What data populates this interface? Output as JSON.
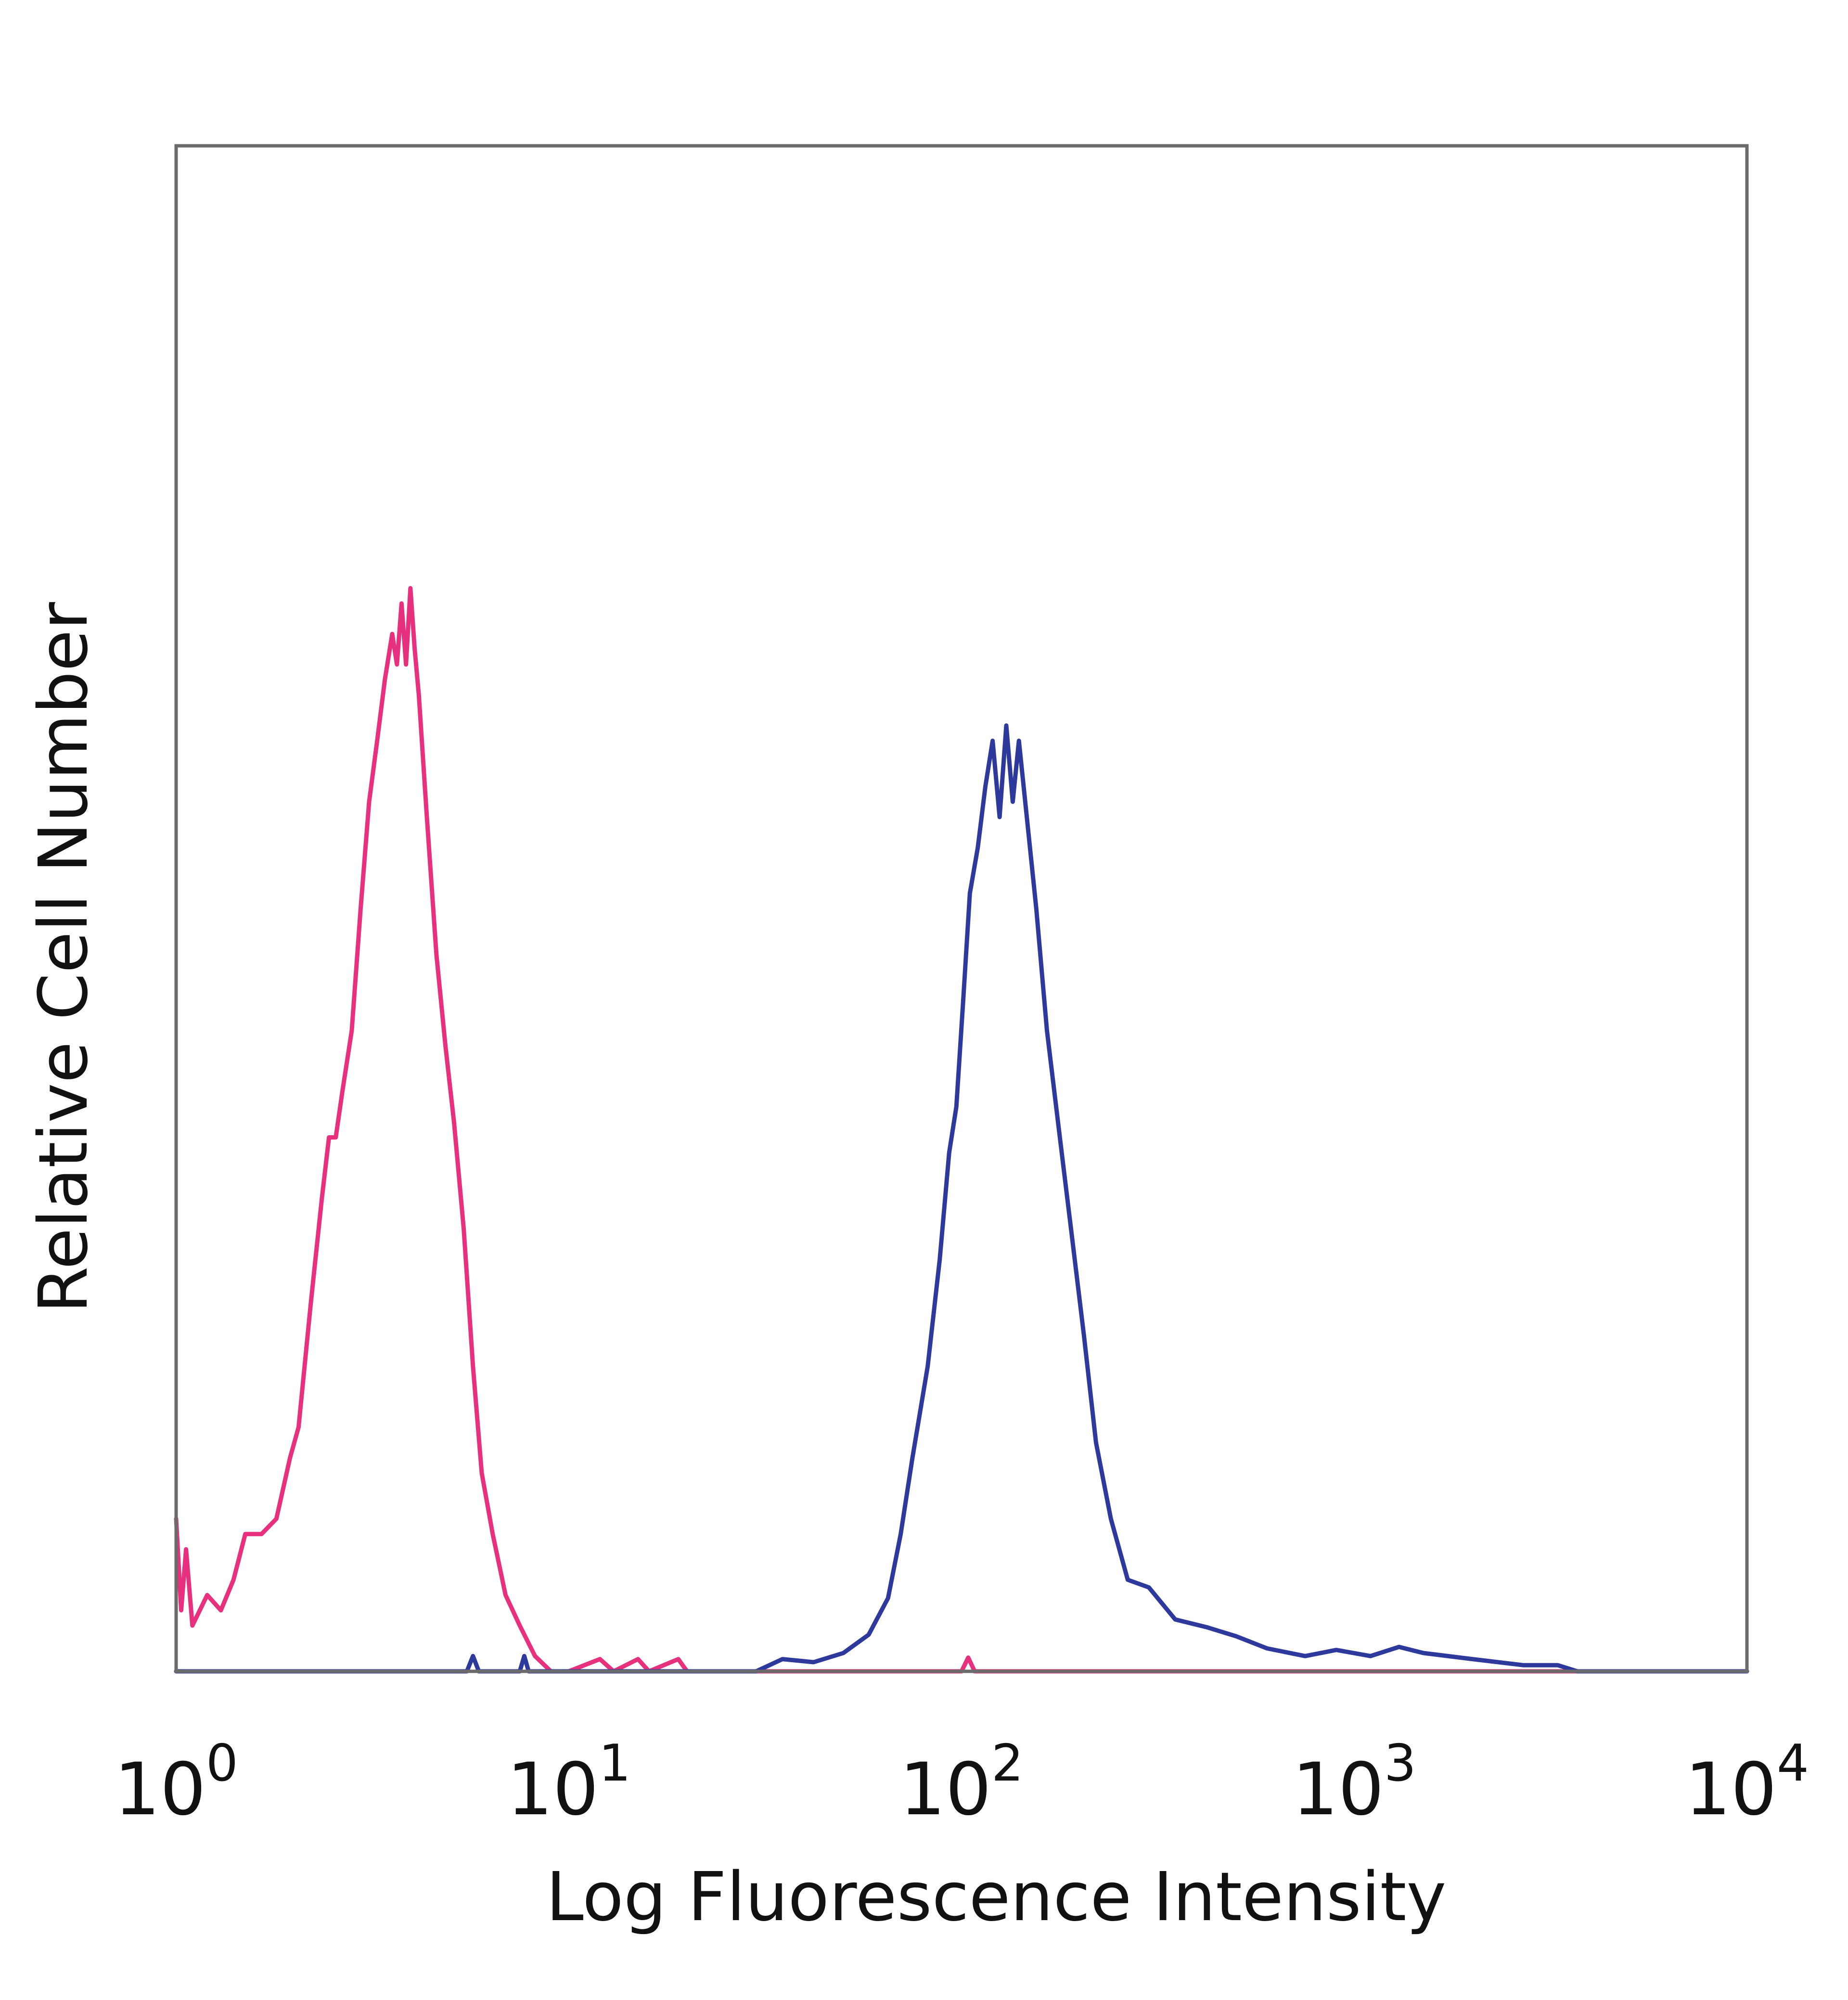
{
  "chart_data": {
    "type": "line",
    "title": "",
    "xlabel": "Log Fluorescence Intensity",
    "ylabel": "Relative Cell Number",
    "x_scale": "log",
    "xlim": [
      1,
      10000
    ],
    "ylim": [
      0,
      100
    ],
    "grid": false,
    "x_ticks": [
      {
        "base": "10",
        "exp": "0",
        "value": 1
      },
      {
        "base": "10",
        "exp": "1",
        "value": 10
      },
      {
        "base": "10",
        "exp": "2",
        "value": 100
      },
      {
        "base": "10",
        "exp": "3",
        "value": 1000
      },
      {
        "base": "10",
        "exp": "4",
        "value": 10000
      }
    ],
    "series": [
      {
        "color": "#e8317e",
        "points": [
          [
            1.0,
            10
          ],
          [
            1.03,
            4
          ],
          [
            1.06,
            8
          ],
          [
            1.1,
            3
          ],
          [
            1.2,
            5
          ],
          [
            1.3,
            4
          ],
          [
            1.4,
            6
          ],
          [
            1.5,
            9
          ],
          [
            1.65,
            9
          ],
          [
            1.8,
            10
          ],
          [
            1.95,
            14
          ],
          [
            2.05,
            16
          ],
          [
            2.2,
            24
          ],
          [
            2.35,
            31
          ],
          [
            2.45,
            35
          ],
          [
            2.55,
            35
          ],
          [
            2.65,
            38
          ],
          [
            2.8,
            42
          ],
          [
            2.95,
            50
          ],
          [
            3.1,
            57
          ],
          [
            3.25,
            61
          ],
          [
            3.4,
            65
          ],
          [
            3.55,
            68
          ],
          [
            3.65,
            66
          ],
          [
            3.75,
            70
          ],
          [
            3.85,
            66
          ],
          [
            3.95,
            71
          ],
          [
            4.05,
            67
          ],
          [
            4.15,
            64
          ],
          [
            4.35,
            56
          ],
          [
            4.6,
            47
          ],
          [
            4.85,
            41
          ],
          [
            5.1,
            36
          ],
          [
            5.4,
            29
          ],
          [
            5.7,
            20
          ],
          [
            6.0,
            13
          ],
          [
            6.4,
            9
          ],
          [
            6.9,
            5
          ],
          [
            7.5,
            3
          ],
          [
            8.2,
            1
          ],
          [
            9.0,
            0
          ],
          [
            10,
            0
          ],
          [
            12,
            0.8
          ],
          [
            13,
            0
          ],
          [
            15,
            0.8
          ],
          [
            16,
            0
          ],
          [
            19,
            0.8
          ],
          [
            20,
            0
          ],
          [
            100,
            0
          ],
          [
            104,
            0.9
          ],
          [
            108,
            0
          ],
          [
            10000,
            0
          ]
        ]
      },
      {
        "color": "#2d3a9c",
        "points": [
          [
            1.0,
            0
          ],
          [
            5.5,
            0
          ],
          [
            5.7,
            1
          ],
          [
            5.9,
            0
          ],
          [
            7.5,
            0
          ],
          [
            7.7,
            1
          ],
          [
            7.9,
            0
          ],
          [
            30,
            0
          ],
          [
            35,
            0.8
          ],
          [
            42,
            0.6
          ],
          [
            50,
            1.2
          ],
          [
            58,
            2.4
          ],
          [
            65,
            4.8
          ],
          [
            70,
            9
          ],
          [
            75,
            14
          ],
          [
            82,
            20
          ],
          [
            88,
            27
          ],
          [
            93,
            34
          ],
          [
            97,
            37
          ],
          [
            101,
            44
          ],
          [
            105,
            51
          ],
          [
            110,
            54
          ],
          [
            115,
            58
          ],
          [
            120,
            61
          ],
          [
            125,
            56
          ],
          [
            130,
            62
          ],
          [
            135,
            57
          ],
          [
            140,
            61
          ],
          [
            148,
            55
          ],
          [
            155,
            50
          ],
          [
            165,
            42
          ],
          [
            178,
            35
          ],
          [
            190,
            29
          ],
          [
            205,
            22
          ],
          [
            220,
            15
          ],
          [
            240,
            10
          ],
          [
            265,
            6
          ],
          [
            300,
            5.5
          ],
          [
            350,
            3.4
          ],
          [
            420,
            2.9
          ],
          [
            500,
            2.3
          ],
          [
            600,
            1.5
          ],
          [
            750,
            1.0
          ],
          [
            900,
            1.4
          ],
          [
            1100,
            1.0
          ],
          [
            1300,
            1.6
          ],
          [
            1500,
            1.2
          ],
          [
            2000,
            0.8
          ],
          [
            2700,
            0.4
          ],
          [
            3300,
            0.4
          ],
          [
            3700,
            0
          ],
          [
            10000,
            0
          ]
        ]
      }
    ]
  }
}
